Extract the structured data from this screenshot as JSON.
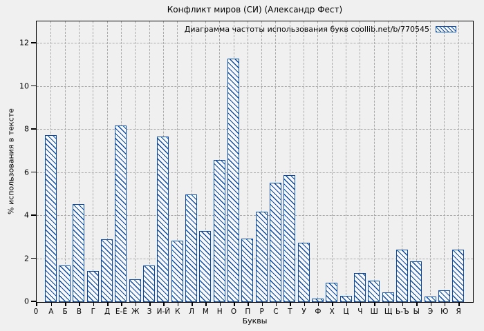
{
  "chart_data": {
    "type": "bar",
    "title": "Конфликт миров (СИ) (Александр Фест)",
    "legend_label": "Диаграмма частоты использования букв coollib.net/b/770545",
    "xlabel": "Буквы",
    "ylabel": "% использования в тексте",
    "x_origin_label": "0",
    "categories": [
      "А",
      "Б",
      "В",
      "Г",
      "Д",
      "Е-Ё",
      "Ж",
      "З",
      "И-Й",
      "К",
      "Л",
      "М",
      "Н",
      "О",
      "П",
      "Р",
      "С",
      "Т",
      "У",
      "Ф",
      "Х",
      "Ц",
      "Ч",
      "Ш",
      "Щ",
      "Ь-Ъ",
      "Ы",
      "Э",
      "Ю",
      "Я"
    ],
    "values": [
      7.75,
      1.7,
      4.55,
      1.45,
      2.9,
      8.2,
      1.05,
      1.7,
      7.7,
      2.85,
      5.0,
      3.3,
      6.6,
      11.3,
      2.95,
      4.2,
      5.55,
      5.9,
      2.75,
      0.15,
      0.9,
      0.3,
      1.35,
      1.0,
      0.45,
      2.45,
      1.9,
      0.25,
      0.55,
      2.45
    ],
    "yticks": [
      0,
      2,
      4,
      6,
      8,
      10,
      12
    ],
    "ylim": [
      0,
      13
    ],
    "grid": true,
    "legend_position": "top-right-inside",
    "colors": {
      "bar_line": "#0b4aa2",
      "bar_fill": "#f9f9f9",
      "grid": "#a9a9a9",
      "axis": "#000000",
      "background": "#f0f0f0",
      "text": "#000000"
    }
  }
}
